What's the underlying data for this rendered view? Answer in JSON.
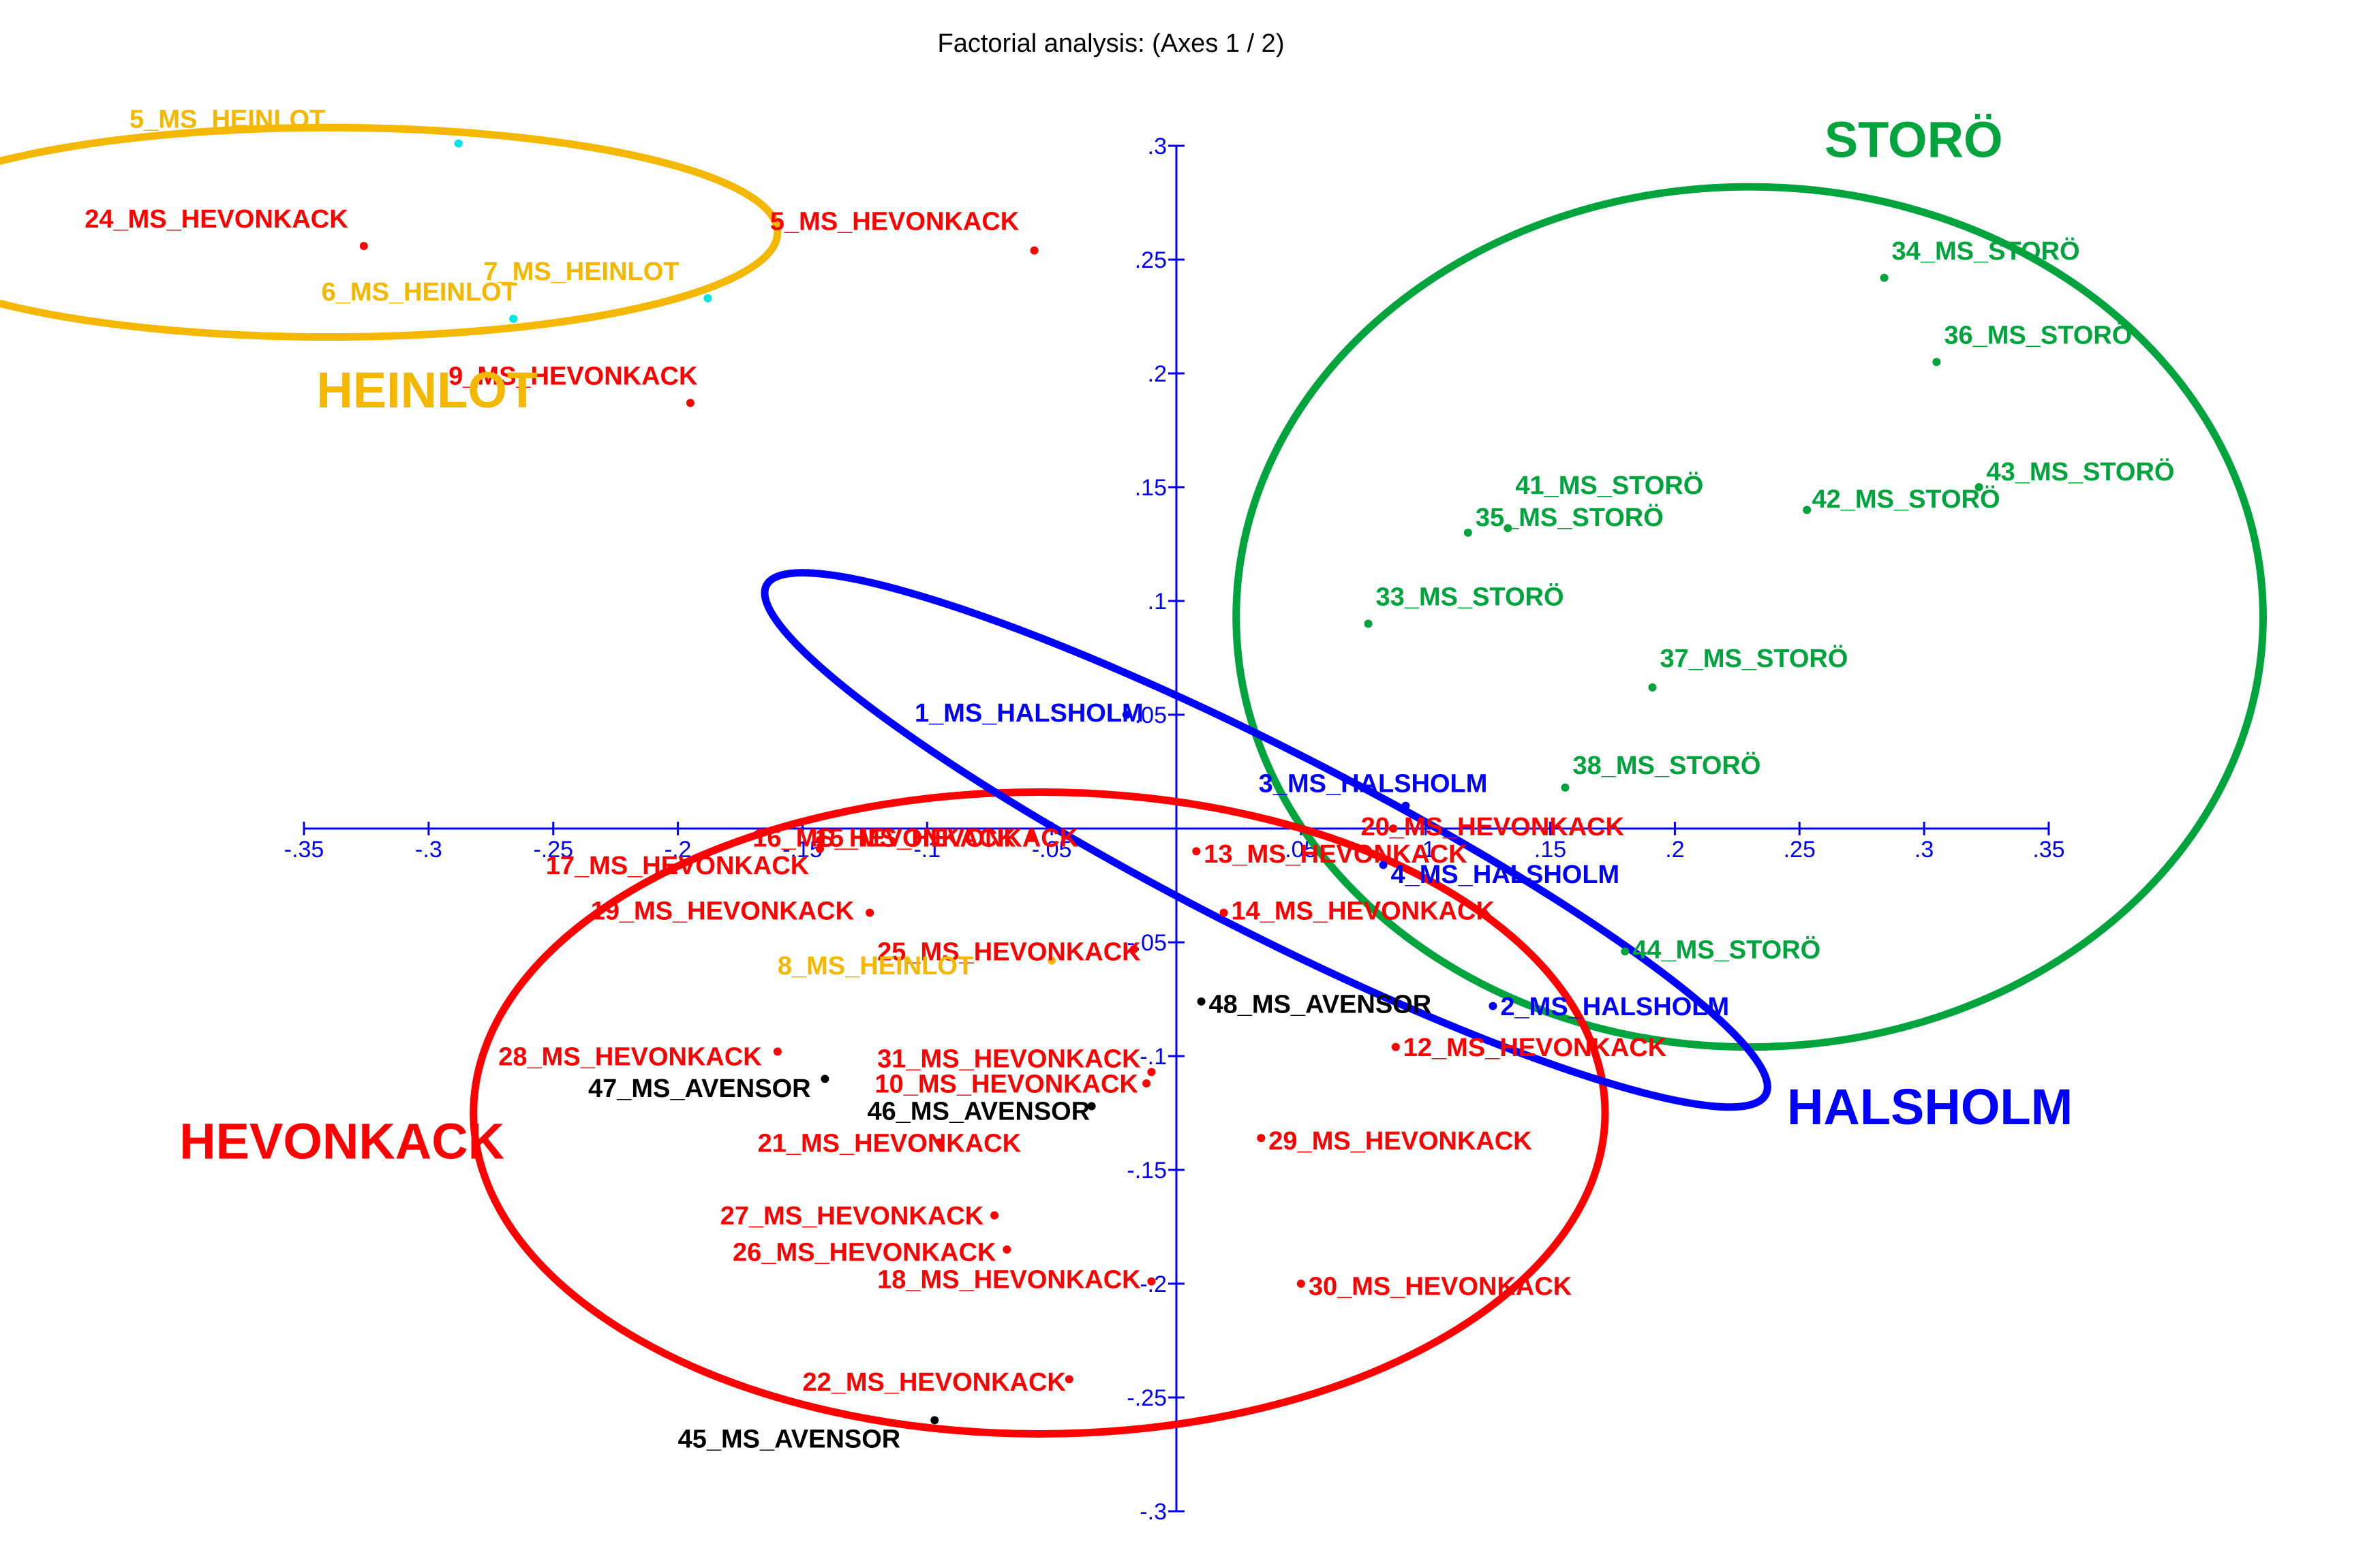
{
  "chart_data": {
    "type": "scatter",
    "title": "Factorial analysis: (Axes 1 / 2)",
    "xlim": [
      -0.35,
      0.35
    ],
    "ylim": [
      -0.3,
      0.3
    ],
    "x_ticks": [
      -0.35,
      -0.3,
      -0.25,
      -0.2,
      -0.15,
      -0.1,
      -0.05,
      0.05,
      0.1,
      0.15,
      0.2,
      0.25,
      0.3,
      0.35
    ],
    "x_tick_labels": [
      "-.35",
      "-.3",
      "-.25",
      "-.2",
      "-.15",
      "-.1",
      "-.05",
      ".05",
      ".1",
      ".15",
      ".2",
      ".25",
      ".3",
      ".35"
    ],
    "y_ticks": [
      0.3,
      0.25,
      0.2,
      0.15,
      0.1,
      0.05,
      -0.05,
      -0.1,
      -0.15,
      -0.2,
      -0.25,
      -0.3
    ],
    "y_tick_labels": [
      ".3",
      ".25",
      ".2",
      ".15",
      ".1",
      ".05",
      "-.05",
      "-.1",
      "-.15",
      "-.2",
      "-.25",
      "-.3"
    ],
    "axis_color": "#0000ff",
    "grid": false,
    "colors": {
      "HEINLOT": "#f5b800",
      "HEVONKACK": "#ff0000",
      "STORO": "#00a43c",
      "HALSHOLM": "#0000ff",
      "AVENSOR": "#000000",
      "heinlot_dot": "#00e5e5"
    },
    "group_labels": [
      {
        "text": "STORÖ",
        "color": "#00a43c",
        "x": 0.26,
        "y": 0.295
      },
      {
        "text": "HEINLOT",
        "color": "#f5b800",
        "x": -0.345,
        "y": 0.185
      },
      {
        "text": "HEVONKACK",
        "color": "#ff0000",
        "x": -0.4,
        "y": -0.145
      },
      {
        "text": "HALSHOLM",
        "color": "#0000ff",
        "x": 0.245,
        "y": -0.13
      }
    ],
    "ellipses": [
      {
        "group": "HEINLOT",
        "color": "#f5b800",
        "cx": -0.34,
        "cy": 0.262,
        "rx": 0.18,
        "ry": 0.046,
        "rotate": 0
      },
      {
        "group": "STORO",
        "color": "#00a43c",
        "cx": 0.23,
        "cy": 0.093,
        "rx": 0.206,
        "ry": 0.189,
        "rotate": 0
      },
      {
        "group": "HEVONKACK",
        "color": "#ff0000",
        "cx": -0.055,
        "cy": -0.125,
        "rx": 0.227,
        "ry": 0.141,
        "rotate": 0
      },
      {
        "group": "HALSHOLM",
        "color": "#0000ff",
        "cx": 0.036,
        "cy": -0.005,
        "rx": 0.225,
        "ry": 0.04,
        "rotate": 27
      }
    ],
    "points": [
      {
        "label": "5_MS_HEINLOT",
        "group": "HEINLOT",
        "x": -0.288,
        "y": 0.301,
        "lx": -0.42,
        "ly": 0.308
      },
      {
        "label": "24_MS_HEVONKACK",
        "group": "HEVONKACK",
        "x": -0.326,
        "y": 0.256,
        "lx": -0.438,
        "ly": 0.264
      },
      {
        "label": "5_MS_HEVONKACK",
        "group": "HEVONKACK",
        "x": -0.057,
        "y": 0.254,
        "lx": -0.163,
        "ly": 0.263
      },
      {
        "label": "7_MS_HEINLOT",
        "group": "HEINLOT",
        "x": -0.188,
        "y": 0.233,
        "lx": -0.278,
        "ly": 0.241
      },
      {
        "label": "6_MS_HEINLOT",
        "group": "HEINLOT",
        "x": -0.266,
        "y": 0.224,
        "lx": -0.343,
        "ly": 0.232
      },
      {
        "label": "9_MS_HEVONKACK",
        "group": "HEVONKACK",
        "x": -0.195,
        "y": 0.187,
        "lx": -0.292,
        "ly": 0.195
      },
      {
        "label": "34_MS_STORÖ",
        "group": "STORO",
        "x": 0.284,
        "y": 0.242,
        "lx": 0.287,
        "ly": 0.25
      },
      {
        "label": "36_MS_STORÖ",
        "group": "STORO",
        "x": 0.305,
        "y": 0.205,
        "lx": 0.308,
        "ly": 0.213
      },
      {
        "label": "41_MS_STORÖ",
        "group": "STORO",
        "x": 0.133,
        "y": 0.132,
        "lx": 0.136,
        "ly": 0.147
      },
      {
        "label": "43_MS_STORÖ",
        "group": "STORO",
        "x": 0.322,
        "y": 0.15,
        "lx": 0.325,
        "ly": 0.153
      },
      {
        "label": "42_MS_STORÖ",
        "group": "STORO",
        "x": 0.253,
        "y": 0.14,
        "lx": 0.255,
        "ly": 0.141
      },
      {
        "label": "35_MS_STORÖ",
        "group": "STORO",
        "x": 0.117,
        "y": 0.13,
        "lx": 0.12,
        "ly": 0.133
      },
      {
        "label": "33_MS_STORÖ",
        "group": "STORO",
        "x": 0.077,
        "y": 0.09,
        "lx": 0.08,
        "ly": 0.098
      },
      {
        "label": "37_MS_STORÖ",
        "group": "STORO",
        "x": 0.191,
        "y": 0.062,
        "lx": 0.194,
        "ly": 0.071
      },
      {
        "label": "38_MS_STORÖ",
        "group": "STORO",
        "x": 0.156,
        "y": 0.018,
        "lx": 0.159,
        "ly": 0.024
      },
      {
        "label": "44_MS_STORÖ",
        "group": "STORO",
        "x": 0.18,
        "y": -0.054,
        "lx": 0.183,
        "ly": -0.057
      },
      {
        "label": "1_MS_HALSHOLM",
        "group": "HALSHOLM",
        "x": -0.02,
        "y": 0.05,
        "lx": -0.105,
        "ly": 0.047
      },
      {
        "label": "3_MS_HALSHOLM",
        "group": "HALSHOLM",
        "x": 0.092,
        "y": 0.01,
        "lx": 0.033,
        "ly": 0.016
      },
      {
        "label": "4_MS_HALSHOLM",
        "group": "HALSHOLM",
        "x": 0.083,
        "y": -0.016,
        "lx": 0.086,
        "ly": -0.024
      },
      {
        "label": "2_MS_HALSHOLM",
        "group": "HALSHOLM",
        "x": 0.127,
        "y": -0.078,
        "lx": 0.13,
        "ly": -0.082
      },
      {
        "label": "20_MS_HEVONKACK",
        "group": "HEVONKACK",
        "x": 0.087,
        "y": 0.0,
        "lx": 0.074,
        "ly": -0.003
      },
      {
        "label": "16_MS_HEVONKACK",
        "group": "HEVONKACK",
        "x": -0.058,
        "y": -0.003,
        "lx": -0.17,
        "ly": -0.008
      },
      {
        "label": "15_MS_HEVONKACK",
        "group": "HEVONKACK",
        "x": -0.143,
        "y": -0.005,
        "lx": -0.145,
        "ly": -0.008
      },
      {
        "label": "17_MS_HEVONKACK",
        "group": "HEVONKACK",
        "x": -0.143,
        "y": -0.009,
        "lx": -0.253,
        "ly": -0.02
      },
      {
        "label": "13_MS_HEVONKACK",
        "group": "HEVONKACK",
        "x": 0.008,
        "y": -0.01,
        "lx": 0.011,
        "ly": -0.015
      },
      {
        "label": "19_MS_HEVONKACK",
        "group": "HEVONKACK",
        "x": -0.123,
        "y": -0.037,
        "lx": -0.235,
        "ly": -0.04
      },
      {
        "label": "14_MS_HEVONKACK",
        "group": "HEVONKACK",
        "x": 0.019,
        "y": -0.037,
        "lx": 0.022,
        "ly": -0.04
      },
      {
        "label": "25_MS_HEVONKACK",
        "group": "HEVONKACK",
        "x": -0.017,
        "y": -0.053,
        "lx": -0.12,
        "ly": -0.058
      },
      {
        "label": "8_MS_HEINLOT",
        "group": "HEINLOT",
        "x": -0.05,
        "y": -0.058,
        "lx": -0.16,
        "ly": -0.064
      },
      {
        "label": "48_MS_AVENSOR",
        "group": "AVENSOR",
        "x": 0.01,
        "y": -0.076,
        "lx": 0.013,
        "ly": -0.081
      },
      {
        "label": "12_MS_HEVONKACK",
        "group": "HEVONKACK",
        "x": 0.088,
        "y": -0.096,
        "lx": 0.091,
        "ly": -0.1
      },
      {
        "label": "28_MS_HEVONKACK",
        "group": "HEVONKACK",
        "x": -0.16,
        "y": -0.098,
        "lx": -0.272,
        "ly": -0.104
      },
      {
        "label": "31_MS_HEVONKACK",
        "group": "HEVONKACK",
        "x": -0.01,
        "y": -0.107,
        "lx": -0.12,
        "ly": -0.105
      },
      {
        "label": "47_MS_AVENSOR",
        "group": "AVENSOR",
        "x": -0.141,
        "y": -0.11,
        "lx": -0.236,
        "ly": -0.118
      },
      {
        "label": "10_MS_HEVONKACK",
        "group": "HEVONKACK",
        "x": -0.012,
        "y": -0.112,
        "lx": -0.121,
        "ly": -0.116
      },
      {
        "label": "46_MS_AVENSOR",
        "group": "AVENSOR",
        "x": -0.034,
        "y": -0.122,
        "lx": -0.124,
        "ly": -0.128
      },
      {
        "label": "29_MS_HEVONKACK",
        "group": "HEVONKACK",
        "x": 0.034,
        "y": -0.136,
        "lx": 0.037,
        "ly": -0.141
      },
      {
        "label": "21_MS_HEVONKACK",
        "group": "HEVONKACK",
        "x": -0.095,
        "y": -0.138,
        "lx": -0.168,
        "ly": -0.142
      },
      {
        "label": "27_MS_HEVONKACK",
        "group": "HEVONKACK",
        "x": -0.073,
        "y": -0.17,
        "lx": -0.183,
        "ly": -0.174
      },
      {
        "label": "26_MS_HEVONKACK",
        "group": "HEVONKACK",
        "x": -0.068,
        "y": -0.185,
        "lx": -0.178,
        "ly": -0.19
      },
      {
        "label": "18_MS_HEVONKACK",
        "group": "HEVONKACK",
        "x": -0.01,
        "y": -0.199,
        "lx": -0.12,
        "ly": -0.202
      },
      {
        "label": "30_MS_HEVONKACK",
        "group": "HEVONKACK",
        "x": 0.05,
        "y": -0.2,
        "lx": 0.053,
        "ly": -0.205
      },
      {
        "label": "22_MS_HEVONKACK",
        "group": "HEVONKACK",
        "x": -0.043,
        "y": -0.242,
        "lx": -0.15,
        "ly": -0.247
      },
      {
        "label": "45_MS_AVENSOR",
        "group": "AVENSOR",
        "x": -0.097,
        "y": -0.26,
        "lx": -0.2,
        "ly": -0.272
      }
    ]
  }
}
